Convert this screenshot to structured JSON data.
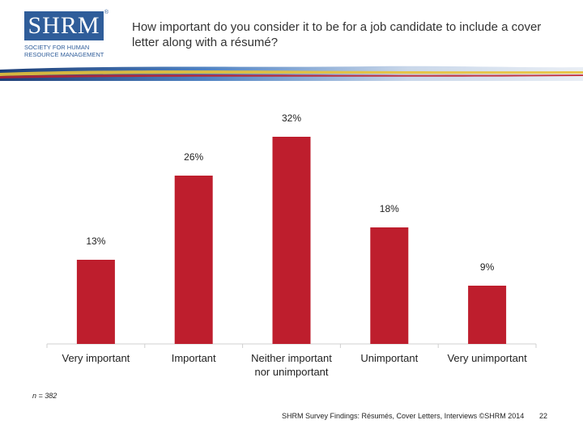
{
  "logo": {
    "mark": "SHRM",
    "registered": "®",
    "subtitle": "Society for Human Resource Management"
  },
  "question": "How important do you consider it to be for a job candidate to include a cover letter along with a résumé?",
  "chart_data": {
    "type": "bar",
    "title": "How important do you consider it to be for a job candidate to include a cover letter along with a résumé?",
    "categories": [
      "Very important",
      "Important",
      "Neither important nor unimportant",
      "Unimportant",
      "Very unimportant"
    ],
    "category_lines": [
      [
        "Very important"
      ],
      [
        "Important"
      ],
      [
        "Neither important",
        "nor unimportant"
      ],
      [
        "Unimportant"
      ],
      [
        "Very unimportant"
      ]
    ],
    "values": [
      13,
      26,
      32,
      18,
      9
    ],
    "labels": [
      "13%",
      "26%",
      "32%",
      "18%",
      "9%"
    ],
    "unit": "%",
    "ylim": [
      0,
      32
    ],
    "grid": false,
    "bar_color": "#be1e2d"
  },
  "sample_note": "n = 382",
  "footer": "SHRM Survey Findings: Résumés, Cover Letters, Interviews ©SHRM 2014",
  "page_number": "22"
}
